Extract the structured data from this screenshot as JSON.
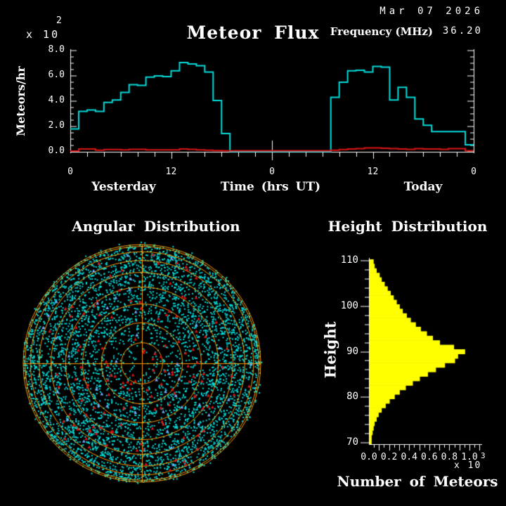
{
  "header": {
    "date": "Mar 07 2026",
    "frequency_label": "Frequency (MHz)",
    "frequency_value": "36.20"
  },
  "colors": {
    "background": "#000000",
    "flux_line": "#00dcdc",
    "background_line": "#dc1414",
    "grid_orange": "#ff9a00",
    "histogram_yellow": "#ffff00",
    "text": "#ffffff"
  },
  "chart_data": [
    {
      "id": "meteor_flux",
      "type": "line",
      "subtype": "step",
      "title": "Meteor Flux",
      "xlabel": "Time (hrs UT)",
      "ylabel": "Meteors/hr",
      "y_scale_base": "x 10",
      "y_scale_exponent": "2",
      "ylim": [
        0,
        8
      ],
      "xlim_hours": [
        0,
        48
      ],
      "section_labels": [
        "Yesterday",
        "Today"
      ],
      "ytick_labels": [
        "0.0",
        "2.0",
        "4.0",
        "6.0",
        "8.0"
      ],
      "xtick_hours": [
        0,
        12,
        24,
        36,
        48
      ],
      "xtick_labels": [
        "0",
        "12",
        "0",
        "12",
        "0"
      ],
      "series": [
        {
          "name": "meteor flux",
          "color": "#00dcdc",
          "values": [
            1.8,
            3.2,
            3.3,
            3.2,
            3.9,
            4.1,
            4.7,
            5.3,
            5.25,
            5.9,
            6.0,
            5.95,
            6.4,
            7.05,
            6.95,
            6.8,
            6.3,
            4.05,
            1.45,
            0.03,
            0.03,
            0.03,
            0.03,
            0.03,
            0.03,
            0.03,
            0.03,
            0.03,
            0.03,
            0.03,
            0.03,
            4.3,
            5.5,
            6.4,
            6.45,
            6.3,
            6.75,
            6.7,
            4.1,
            5.1,
            4.3,
            2.6,
            2.1,
            1.6,
            1.6,
            1.6,
            1.6,
            0.55
          ]
        },
        {
          "name": "background rate",
          "color": "#dc1414",
          "values": [
            0.05,
            0.22,
            0.22,
            0.12,
            0.18,
            0.18,
            0.15,
            0.2,
            0.2,
            0.15,
            0.15,
            0.15,
            0.15,
            0.22,
            0.2,
            0.15,
            0.12,
            0.1,
            0.08,
            0.08,
            0.08,
            0.08,
            0.08,
            0.08,
            0.08,
            0.08,
            0.08,
            0.08,
            0.08,
            0.08,
            0.08,
            0.12,
            0.18,
            0.22,
            0.25,
            0.3,
            0.3,
            0.28,
            0.25,
            0.22,
            0.2,
            0.25,
            0.22,
            0.22,
            0.2,
            0.25,
            0.25,
            0.08
          ]
        }
      ]
    },
    {
      "id": "angular_distribution",
      "type": "scatter",
      "title": "Angular Distribution",
      "projection": "all-sky polar",
      "ring_color": "#ff9a00",
      "rings_elevation_deg": [
        0,
        10,
        20,
        30,
        40,
        50,
        60,
        70,
        80
      ],
      "point_counts": {
        "cyan_echoes": 5200,
        "red_echoes": 135,
        "blue_echoes": 42
      },
      "point_colors": {
        "cyan_echoes": "#00dcdc",
        "red_echoes": "#dc1414",
        "blue_echoes": "#77aaff"
      }
    },
    {
      "id": "height_distribution",
      "type": "bar",
      "orientation": "horizontal",
      "title": "Height Distribution",
      "ylabel": "Height",
      "xlabel": "Number of Meteors",
      "x_scale_base": "x 10",
      "x_scale_exponent": "3",
      "xlim": [
        0,
        1.0
      ],
      "bar_color": "#ffff00",
      "ytick_labels": [
        "110",
        "100",
        "90",
        "80",
        "70"
      ],
      "xtick_labels": [
        "0.0",
        "0.2",
        "0.4",
        "0.6",
        "0.8",
        "1.0"
      ],
      "heights_km": [
        110,
        109,
        108,
        107,
        106,
        105,
        104,
        103,
        102,
        101,
        100,
        99,
        98,
        97,
        96,
        95,
        94,
        93,
        92,
        91,
        90,
        89,
        88,
        87,
        86,
        85,
        84,
        83,
        82,
        81,
        80,
        79,
        78,
        77,
        76,
        75,
        74,
        73,
        72,
        71,
        70
      ],
      "values": [
        0.04,
        0.05,
        0.07,
        0.1,
        0.12,
        0.15,
        0.18,
        0.21,
        0.24,
        0.27,
        0.3,
        0.33,
        0.37,
        0.41,
        0.46,
        0.51,
        0.57,
        0.63,
        0.7,
        0.84,
        0.95,
        0.88,
        0.85,
        0.75,
        0.66,
        0.58,
        0.5,
        0.43,
        0.36,
        0.3,
        0.25,
        0.2,
        0.16,
        0.12,
        0.09,
        0.07,
        0.05,
        0.04,
        0.03,
        0.02,
        0.02
      ]
    }
  ]
}
